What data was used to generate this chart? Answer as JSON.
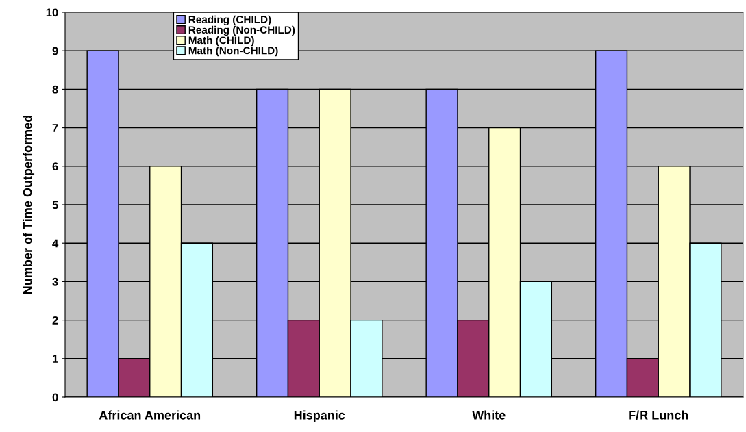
{
  "chart_data": {
    "type": "bar",
    "ylabel": "Number of Time Outperformed",
    "categories": [
      "African American",
      "Hispanic",
      "White",
      "F/R Lunch"
    ],
    "series": [
      {
        "name": "Reading (CHILD)",
        "color": "#9999ff",
        "values": [
          9,
          8,
          8,
          9
        ]
      },
      {
        "name": "Reading (Non-CHILD)",
        "color": "#993366",
        "values": [
          1,
          2,
          2,
          1
        ]
      },
      {
        "name": "Math (CHILD)",
        "color": "#ffffcc",
        "values": [
          6,
          8,
          7,
          6
        ]
      },
      {
        "name": "Math (Non-CHILD)",
        "color": "#ccffff",
        "values": [
          4,
          2,
          3,
          4
        ]
      }
    ],
    "ylim": [
      0,
      10
    ],
    "yticks": [
      0,
      1,
      2,
      3,
      4,
      5,
      6,
      7,
      8,
      9,
      10
    ],
    "grid": "y",
    "legend": "top left"
  }
}
